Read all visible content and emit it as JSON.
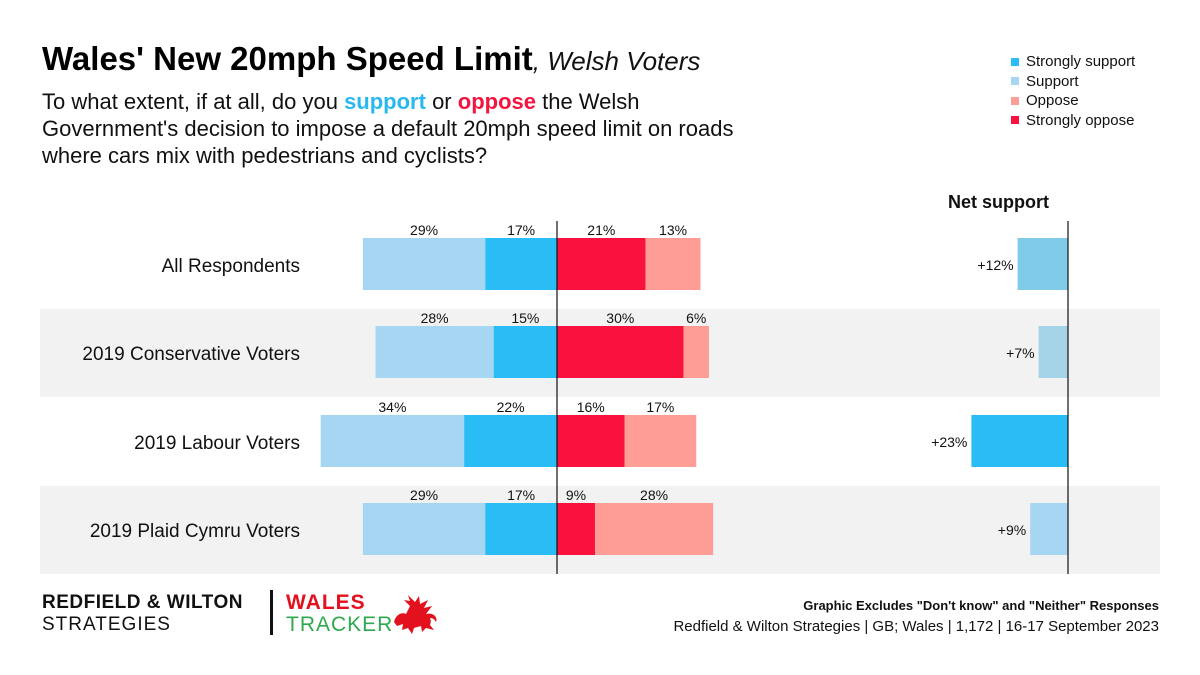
{
  "title": {
    "main": "Wales' New 20mph Speed Limit",
    "sub": ", Welsh Voters"
  },
  "question": {
    "part1": "To what extent, if at all, do you ",
    "support_word": "support",
    "part2": " or ",
    "oppose_word": "oppose",
    "part3": " the Welsh Government's decision to impose a default 20mph speed limit on roads where cars mix with pedestrians and cyclists?"
  },
  "legend": [
    {
      "label": "Strongly support",
      "color": "#29bcf5"
    },
    {
      "label": "Support",
      "color": "#a6d6f2"
    },
    {
      "label": "Oppose",
      "color": "#fe9c96"
    },
    {
      "label": "Strongly oppose",
      "color": "#f9123d"
    }
  ],
  "net_support_label": "Net support",
  "chart_data": {
    "type": "bar",
    "subtype": "diverging-stacked-horizontal",
    "categories": [
      "All Respondents",
      "2019 Conservative Voters",
      "2019 Labour Voters",
      "2019 Plaid Cymru Voters"
    ],
    "series": [
      {
        "name": "Support",
        "values": [
          29,
          28,
          34,
          29
        ],
        "labels": [
          "29%",
          "28%",
          "34%",
          "29%"
        ],
        "color": "#a6d6f2"
      },
      {
        "name": "Strongly support",
        "values": [
          17,
          15,
          22,
          17
        ],
        "labels": [
          "17%",
          "15%",
          "22%",
          "17%"
        ],
        "color": "#29bcf5"
      },
      {
        "name": "Strongly oppose",
        "values": [
          21,
          30,
          16,
          9
        ],
        "labels": [
          "21%",
          "30%",
          "16%",
          "9%"
        ],
        "color": "#f9123d"
      },
      {
        "name": "Oppose",
        "values": [
          13,
          6,
          17,
          28
        ],
        "labels": [
          "13%",
          "6%",
          "17%",
          "28%"
        ],
        "color": "#fe9c96"
      }
    ],
    "net_support": {
      "values": [
        12,
        7,
        23,
        9
      ],
      "labels": [
        "+12%",
        "+7%",
        "+23%",
        "+9%"
      ],
      "colors": [
        "#7fcbe8",
        "#a5d4e8",
        "#29bcf5",
        "#a6d6f2"
      ]
    },
    "row_shading": [
      false,
      true,
      false,
      true
    ]
  },
  "footer": {
    "brand_line1": "REDFIELD & WILTON",
    "brand_line2": "STRATEGIES",
    "tracker_line1": "WALES",
    "tracker_line2": "TRACKER",
    "note": "Graphic Excludes \"Don't know\" and \"Neither\" Responses",
    "source": "Redfield & Wilton Strategies | GB; Wales | 1,172 | 16-17 September 2023"
  }
}
